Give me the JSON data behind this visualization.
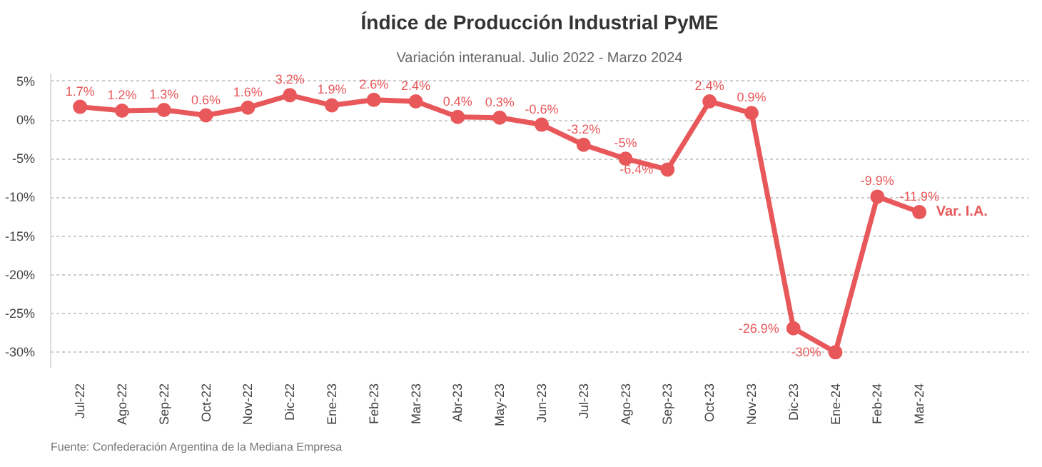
{
  "chart_data": {
    "type": "line",
    "title": "Índice de Producción Industrial PyME",
    "subtitle": "Variación interanual. Julio 2022 - Marzo 2024",
    "categories": [
      "Jul-22",
      "Ago-22",
      "Sep-22",
      "Oct-22",
      "Nov-22",
      "Dic-22",
      "Ene-23",
      "Feb-23",
      "Mar-23",
      "Abr-23",
      "May-23",
      "Jun-23",
      "Jul-23",
      "Ago-23",
      "Sep-23",
      "Oct-23",
      "Nov-23",
      "Dic-23",
      "Ene-24",
      "Feb-24",
      "Mar-24"
    ],
    "series": [
      {
        "name": "Var. I.A.",
        "color": "#e8585a",
        "values": [
          1.7,
          1.2,
          1.3,
          0.6,
          1.6,
          3.2,
          1.9,
          2.6,
          2.4,
          0.4,
          0.3,
          -0.6,
          -3.2,
          -5,
          -6.4,
          2.4,
          0.9,
          -26.9,
          -30,
          -9.9,
          -11.9
        ],
        "value_labels": [
          "1.7%",
          "1.2%",
          "1.3%",
          "0.6%",
          "1.6%",
          "3.2%",
          "1.9%",
          "2.6%",
          "2.4%",
          "0.4%",
          "0.3%",
          "-0.6%",
          "-3.2%",
          "-5%",
          "-6.4%",
          "2.4%",
          "0.9%",
          "-26.9%",
          "-30%",
          "-9.9%",
          "-11.9%"
        ]
      }
    ],
    "ylim": [
      -32,
      6
    ],
    "yticks": [
      {
        "value": 5,
        "label": "5%"
      },
      {
        "value": 0,
        "label": "0%"
      },
      {
        "value": -5,
        "label": "-5%"
      },
      {
        "value": -10,
        "label": "-10%"
      },
      {
        "value": -15,
        "label": "-15%"
      },
      {
        "value": -20,
        "label": "-20%"
      },
      {
        "value": -25,
        "label": "-25%"
      },
      {
        "value": -30,
        "label": "-30%"
      }
    ],
    "grid": "y",
    "marker": "circle",
    "line_style": "solid",
    "annotations": [
      "Fuente: Confederación Argentina de la Mediana Empresa"
    ]
  }
}
